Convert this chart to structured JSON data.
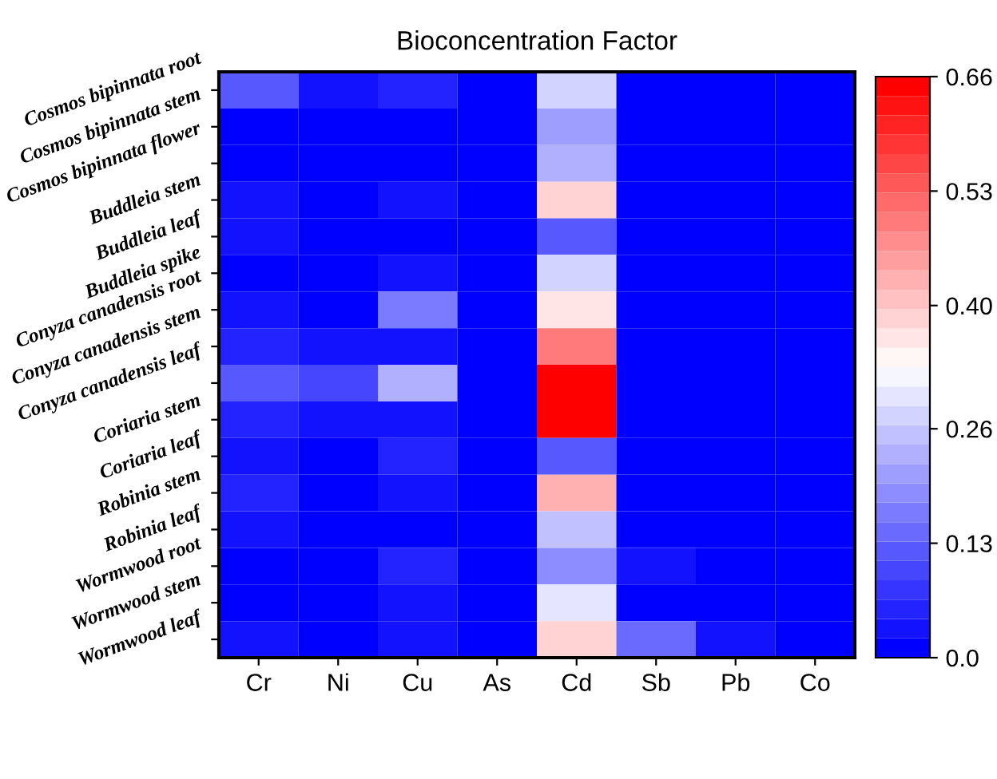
{
  "chart_data": {
    "type": "heatmap",
    "title": "Bioconcentration Factor",
    "categories": [
      "Cr",
      "Ni",
      "Cu",
      "As",
      "Cd",
      "Sb",
      "Pb",
      "Co"
    ],
    "y_categories": [
      "Cosmos bipinnata root",
      "Cosmos bipinnata stem",
      "Cosmos bipinnata flower",
      "Buddleia stem",
      "Buddleia leaf",
      "Buddleia spike",
      "Conyza canadensis root",
      "Conyza canadensis stem",
      "Conyza canadensis leaf",
      "Coriaria stem",
      "Coriaria leaf",
      "Robinia stem",
      "Robinia leaf",
      "Wormwood root",
      "Wormwood stem",
      "Wormwood leaf"
    ],
    "cells": [
      [
        0.13,
        0.04,
        0.06,
        0.0,
        0.28,
        0.0,
        0.0,
        0.0
      ],
      [
        0.02,
        0.01,
        0.02,
        0.0,
        0.2,
        0.0,
        0.0,
        0.0
      ],
      [
        0.02,
        0.01,
        0.02,
        0.0,
        0.23,
        0.0,
        0.0,
        0.0
      ],
      [
        0.04,
        0.02,
        0.04,
        0.0,
        0.39,
        0.0,
        0.0,
        0.0
      ],
      [
        0.04,
        0.02,
        0.02,
        0.0,
        0.13,
        0.0,
        0.0,
        0.0
      ],
      [
        0.02,
        0.02,
        0.04,
        0.0,
        0.28,
        0.0,
        0.0,
        0.0
      ],
      [
        0.04,
        0.02,
        0.17,
        0.0,
        0.37,
        0.02,
        0.0,
        0.0
      ],
      [
        0.06,
        0.04,
        0.04,
        0.0,
        0.5,
        0.0,
        0.0,
        0.0
      ],
      [
        0.13,
        0.09,
        0.23,
        0.0,
        0.66,
        0.02,
        0.02,
        0.0
      ],
      [
        0.06,
        0.04,
        0.04,
        0.0,
        0.64,
        0.02,
        0.0,
        0.02
      ],
      [
        0.04,
        0.0,
        0.06,
        0.0,
        0.13,
        0.02,
        0.0,
        0.0
      ],
      [
        0.06,
        0.02,
        0.04,
        0.0,
        0.44,
        0.02,
        0.0,
        0.0
      ],
      [
        0.04,
        0.02,
        0.02,
        0.0,
        0.25,
        0.02,
        0.0,
        0.0
      ],
      [
        0.02,
        0.02,
        0.06,
        0.0,
        0.18,
        0.04,
        0.0,
        0.0
      ],
      [
        0.02,
        0.02,
        0.04,
        0.0,
        0.3,
        0.02,
        0.0,
        0.0
      ],
      [
        0.04,
        0.02,
        0.04,
        0.0,
        0.39,
        0.15,
        0.04,
        0.0
      ]
    ],
    "clim": [
      0,
      0.66
    ],
    "cticks": [
      {
        "value": 0,
        "label": "0.0"
      },
      0.13,
      0.26,
      {
        "value": 0.4,
        "label": "0.40"
      },
      0.53,
      0.66
    ]
  }
}
